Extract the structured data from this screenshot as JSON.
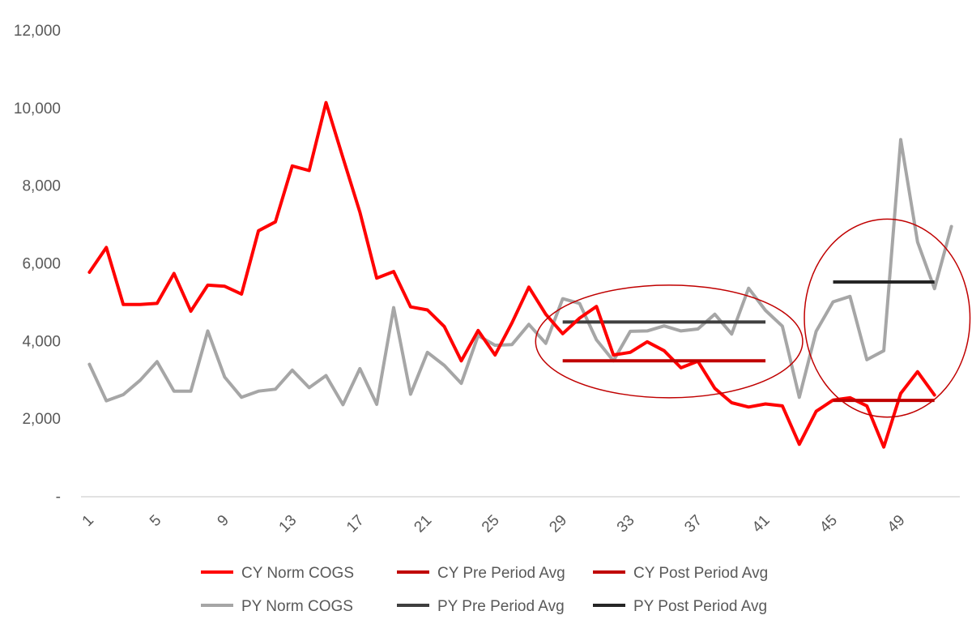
{
  "chart_data": {
    "type": "line",
    "title": "",
    "xlabel": "",
    "ylabel": "",
    "x": [
      1,
      2,
      3,
      4,
      5,
      6,
      7,
      8,
      9,
      10,
      11,
      12,
      13,
      14,
      15,
      16,
      17,
      18,
      19,
      20,
      21,
      22,
      23,
      24,
      25,
      26,
      27,
      28,
      29,
      30,
      31,
      32,
      33,
      34,
      35,
      36,
      37,
      38,
      39,
      40,
      41,
      42,
      43,
      44,
      45,
      46,
      47,
      48,
      49,
      50,
      51,
      52
    ],
    "x_tick_labels": [
      "1",
      "5",
      "9",
      "13",
      "17",
      "21",
      "25",
      "29",
      "33",
      "37",
      "41",
      "45",
      "49"
    ],
    "x_tick_values": [
      1,
      5,
      9,
      13,
      17,
      21,
      25,
      29,
      33,
      37,
      41,
      45,
      49
    ],
    "xlim": [
      0.5,
      52.5
    ],
    "ylim": [
      0,
      12000
    ],
    "y_ticks": [
      0,
      2000,
      4000,
      6000,
      8000,
      10000,
      12000
    ],
    "y_tick_labels": [
      "-",
      "2,000",
      "4,000",
      "6,000",
      "8,000",
      "10,000",
      "12,000"
    ],
    "grid": false,
    "legend_position": "bottom",
    "series": [
      {
        "name": "CY Norm COGS",
        "color": "#ff0000",
        "kind": "line",
        "values": [
          5780,
          6420,
          4950,
          4950,
          4980,
          5750,
          4780,
          5450,
          5420,
          5220,
          6850,
          7080,
          8520,
          8400,
          10150,
          8730,
          7330,
          5630,
          5800,
          4890,
          4810,
          4380,
          3500,
          4280,
          3650,
          4480,
          5400,
          4700,
          4200,
          4600,
          4900,
          3650,
          3720,
          3990,
          3760,
          3320,
          3490,
          2790,
          2420,
          2310,
          2390,
          2340,
          1350,
          2200,
          2490,
          2550,
          2340,
          1280,
          2660,
          3220,
          2620,
          null
        ]
      },
      {
        "name": "CY Pre Period Avg",
        "color": "#c00000",
        "kind": "segment",
        "x_start": 29,
        "x_end": 41,
        "value": 3500
      },
      {
        "name": "CY Post Period Avg",
        "color": "#c00000",
        "kind": "segment",
        "x_start": 45,
        "x_end": 51,
        "value": 2480
      },
      {
        "name": "PY Norm COGS",
        "color": "#a6a6a6",
        "kind": "line",
        "values": [
          3410,
          2470,
          2630,
          3000,
          3480,
          2720,
          2720,
          4270,
          3080,
          2560,
          2720,
          2770,
          3260,
          2810,
          3120,
          2370,
          3300,
          2380,
          4870,
          2640,
          3720,
          3380,
          2920,
          4150,
          3900,
          3920,
          4440,
          3950,
          5100,
          4980,
          4040,
          3500,
          4260,
          4270,
          4400,
          4270,
          4320,
          4700,
          4190,
          5370,
          4800,
          4390,
          2560,
          4260,
          5020,
          5160,
          3530,
          3760,
          9200,
          6560,
          5360,
          6960
        ]
      },
      {
        "name": "PY Pre Period Avg",
        "color": "#3f3f3f",
        "kind": "segment",
        "x_start": 29,
        "x_end": 41,
        "value": 4500
      },
      {
        "name": "PY Post Period Avg",
        "color": "#262626",
        "kind": "segment",
        "x_start": 45,
        "x_end": 51,
        "value": 5530
      }
    ],
    "annotations": [
      {
        "type": "ellipse",
        "color": "#c00000",
        "x_center": 35.3,
        "y_center": 4000,
        "x_radius": 7.9,
        "y_radius": 1450
      },
      {
        "type": "ellipse",
        "color": "#c00000",
        "x_center": 48.2,
        "y_center": 4600,
        "x_radius": 4.9,
        "y_radius": 2550
      }
    ]
  }
}
